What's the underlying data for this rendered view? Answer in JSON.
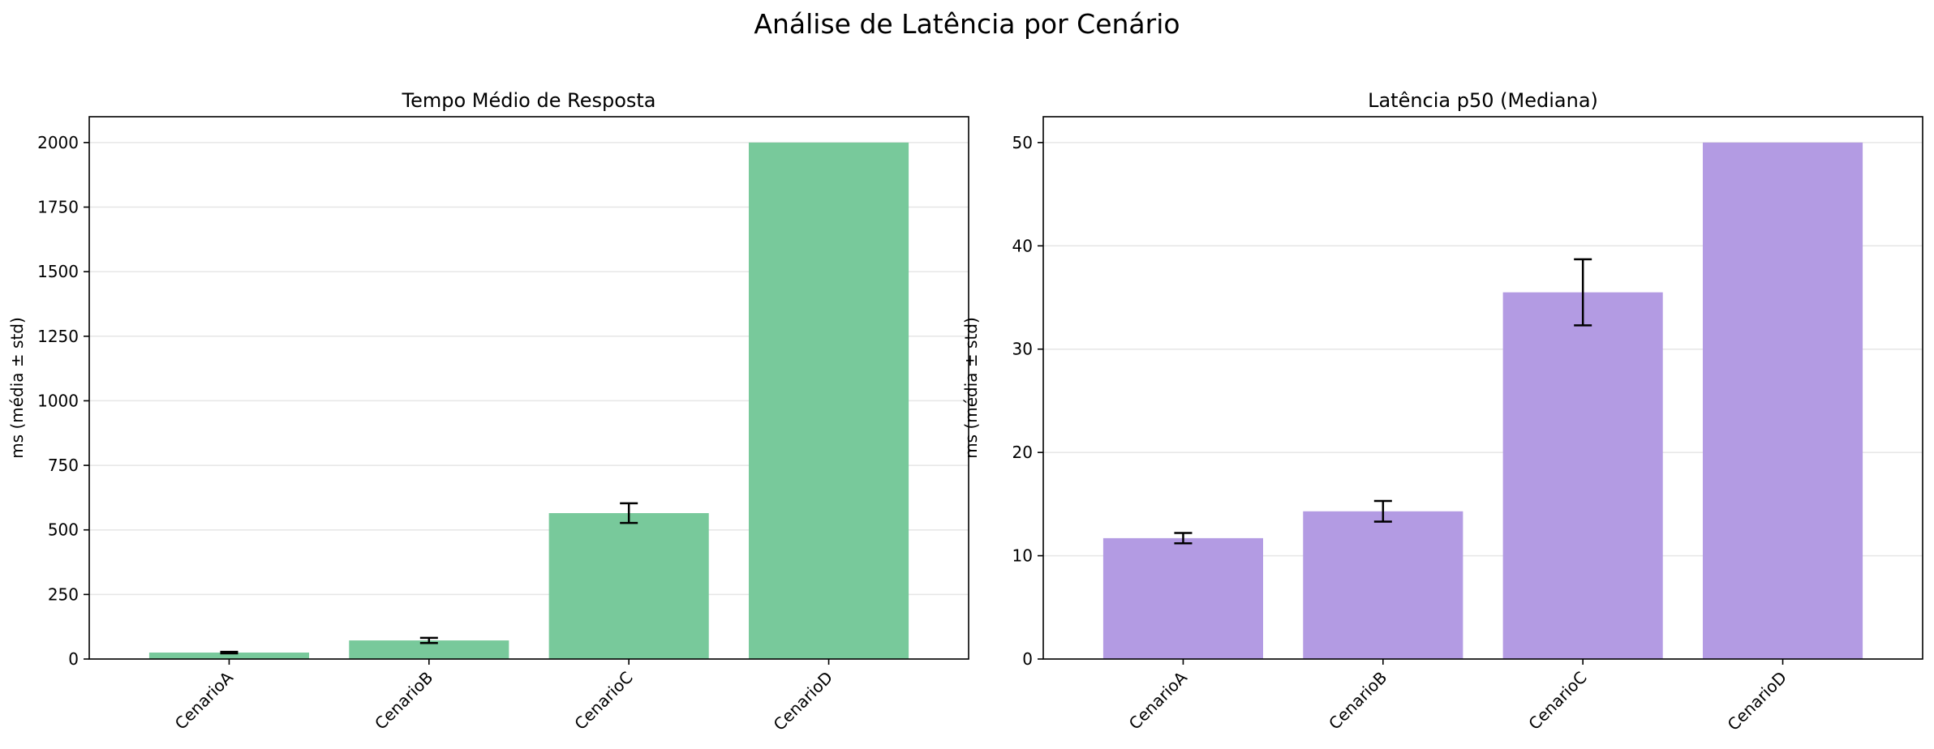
{
  "figure": {
    "title": "Análise de Latência por Cenário"
  },
  "chart_data": [
    {
      "type": "bar",
      "title": "Tempo Médio de Resposta",
      "xlabel": "",
      "ylabel": "ms (média ± std)",
      "categories": [
        "CenarioA",
        "CenarioB",
        "CenarioC",
        "CenarioD"
      ],
      "values": [
        25,
        72,
        565,
        2000
      ],
      "errors": [
        3,
        10,
        38,
        0
      ],
      "ylim": [
        0,
        2100
      ],
      "yticks": [
        0,
        250,
        500,
        750,
        1000,
        1250,
        1500,
        1750,
        2000
      ],
      "grid": "y",
      "color": "#78c99b"
    },
    {
      "type": "bar",
      "title": "Latência p50 (Mediana)",
      "xlabel": "",
      "ylabel": "ms (média ± std)",
      "categories": [
        "CenarioA",
        "CenarioB",
        "CenarioC",
        "CenarioD"
      ],
      "values": [
        11.7,
        14.3,
        35.5,
        50.0
      ],
      "errors": [
        0.5,
        1.0,
        3.2,
        0
      ],
      "ylim": [
        0,
        52.5
      ],
      "yticks": [
        0,
        10,
        20,
        30,
        40,
        50
      ],
      "grid": "y",
      "color": "#b39be3"
    }
  ]
}
